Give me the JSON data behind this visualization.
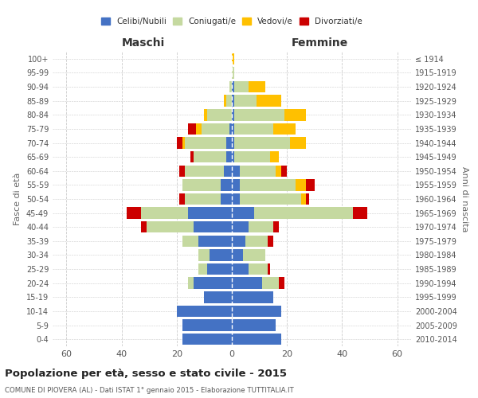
{
  "age_groups": [
    "0-4",
    "5-9",
    "10-14",
    "15-19",
    "20-24",
    "25-29",
    "30-34",
    "35-39",
    "40-44",
    "45-49",
    "50-54",
    "55-59",
    "60-64",
    "65-69",
    "70-74",
    "75-79",
    "80-84",
    "85-89",
    "90-94",
    "95-99",
    "100+"
  ],
  "birth_years": [
    "2010-2014",
    "2005-2009",
    "2000-2004",
    "1995-1999",
    "1990-1994",
    "1985-1989",
    "1980-1984",
    "1975-1979",
    "1970-1974",
    "1965-1969",
    "1960-1964",
    "1955-1959",
    "1950-1954",
    "1945-1949",
    "1940-1944",
    "1935-1939",
    "1930-1934",
    "1925-1929",
    "1920-1924",
    "1915-1919",
    "≤ 1914"
  ],
  "colors": {
    "celibi": "#4472c4",
    "coniugati": "#c5d9a0",
    "vedovi": "#ffc000",
    "divorziati": "#cc0000"
  },
  "maschi": {
    "celibi": [
      18,
      18,
      20,
      10,
      14,
      9,
      8,
      12,
      14,
      16,
      4,
      4,
      3,
      2,
      2,
      1,
      0,
      0,
      0,
      0,
      0
    ],
    "coniugati": [
      0,
      0,
      0,
      0,
      2,
      3,
      4,
      6,
      17,
      17,
      13,
      14,
      14,
      12,
      15,
      10,
      9,
      2,
      1,
      0,
      0
    ],
    "vedovi": [
      0,
      0,
      0,
      0,
      0,
      0,
      0,
      0,
      0,
      0,
      0,
      0,
      0,
      0,
      1,
      2,
      1,
      1,
      0,
      0,
      0
    ],
    "divorziati": [
      0,
      0,
      0,
      0,
      0,
      0,
      0,
      0,
      2,
      5,
      2,
      0,
      2,
      1,
      2,
      3,
      0,
      0,
      0,
      0,
      0
    ]
  },
  "femmine": {
    "celibi": [
      18,
      16,
      18,
      15,
      11,
      6,
      4,
      5,
      6,
      8,
      3,
      3,
      3,
      1,
      1,
      1,
      1,
      1,
      1,
      0,
      0
    ],
    "coniugati": [
      0,
      0,
      0,
      0,
      6,
      7,
      8,
      8,
      9,
      36,
      22,
      20,
      13,
      13,
      20,
      14,
      18,
      8,
      5,
      1,
      0
    ],
    "vedovi": [
      0,
      0,
      0,
      0,
      0,
      0,
      0,
      0,
      0,
      0,
      2,
      4,
      2,
      3,
      6,
      8,
      8,
      9,
      6,
      0,
      1
    ],
    "divorziati": [
      0,
      0,
      0,
      0,
      2,
      1,
      0,
      2,
      2,
      5,
      1,
      3,
      2,
      0,
      0,
      0,
      0,
      0,
      0,
      0,
      0
    ]
  },
  "xlim": 65,
  "title": "Popolazione per età, sesso e stato civile - 2015",
  "subtitle": "COMUNE DI PIOVERA (AL) - Dati ISTAT 1° gennaio 2015 - Elaborazione TUTTITALIA.IT",
  "ylabel_left": "Fasce di età",
  "ylabel_right": "Anni di nascita",
  "xlabel_left": "Maschi",
  "xlabel_right": "Femmine",
  "legend_labels": [
    "Celibi/Nubili",
    "Coniugati/e",
    "Vedovi/e",
    "Divorziati/e"
  ],
  "background_color": "#ffffff",
  "grid_color": "#cccccc"
}
